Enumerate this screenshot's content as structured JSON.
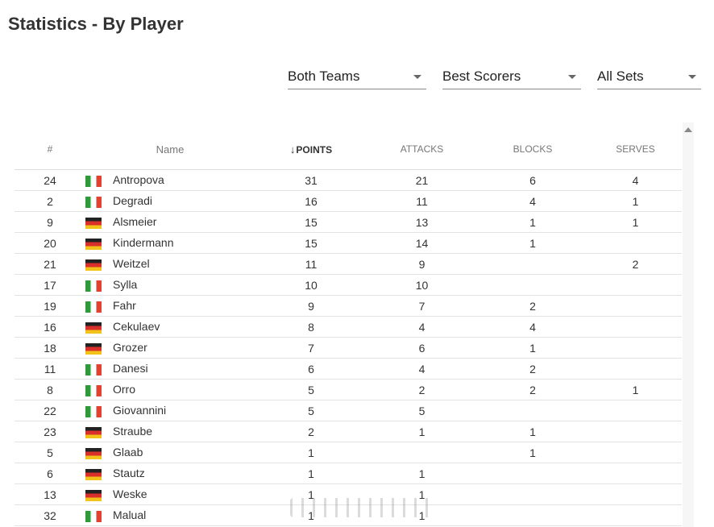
{
  "page": {
    "title": "Statistics - By Player"
  },
  "filters": [
    {
      "name": "team-filter",
      "value": "Both Teams"
    },
    {
      "name": "category-filter",
      "value": "Best Scorers"
    },
    {
      "name": "set-filter",
      "value": "All Sets"
    }
  ],
  "table": {
    "headers": {
      "num": "#",
      "name": "Name",
      "points": "POINTS",
      "attacks": "ATTACKS",
      "blocks": "BLOCKS",
      "serves": "SERVES"
    },
    "sort_indicator": "↓",
    "rows": [
      {
        "num": "24",
        "flag": "it",
        "name": "Antropova",
        "points": "31",
        "attacks": "21",
        "blocks": "6",
        "serves": "4"
      },
      {
        "num": "2",
        "flag": "it",
        "name": "Degradi",
        "points": "16",
        "attacks": "11",
        "blocks": "4",
        "serves": "1"
      },
      {
        "num": "9",
        "flag": "de",
        "name": "Alsmeier",
        "points": "15",
        "attacks": "13",
        "blocks": "1",
        "serves": "1"
      },
      {
        "num": "20",
        "flag": "de",
        "name": "Kindermann",
        "points": "15",
        "attacks": "14",
        "blocks": "1",
        "serves": ""
      },
      {
        "num": "21",
        "flag": "de",
        "name": "Weitzel",
        "points": "11",
        "attacks": "9",
        "blocks": "",
        "serves": "2"
      },
      {
        "num": "17",
        "flag": "it",
        "name": "Sylla",
        "points": "10",
        "attacks": "10",
        "blocks": "",
        "serves": ""
      },
      {
        "num": "19",
        "flag": "it",
        "name": "Fahr",
        "points": "9",
        "attacks": "7",
        "blocks": "2",
        "serves": ""
      },
      {
        "num": "16",
        "flag": "de",
        "name": "Cekulaev",
        "points": "8",
        "attacks": "4",
        "blocks": "4",
        "serves": ""
      },
      {
        "num": "18",
        "flag": "de",
        "name": "Grozer",
        "points": "7",
        "attacks": "6",
        "blocks": "1",
        "serves": ""
      },
      {
        "num": "11",
        "flag": "it",
        "name": "Danesi",
        "points": "6",
        "attacks": "4",
        "blocks": "2",
        "serves": ""
      },
      {
        "num": "8",
        "flag": "it",
        "name": "Orro",
        "points": "5",
        "attacks": "2",
        "blocks": "2",
        "serves": "1"
      },
      {
        "num": "22",
        "flag": "it",
        "name": "Giovannini",
        "points": "5",
        "attacks": "5",
        "blocks": "",
        "serves": ""
      },
      {
        "num": "23",
        "flag": "de",
        "name": "Straube",
        "points": "2",
        "attacks": "1",
        "blocks": "1",
        "serves": ""
      },
      {
        "num": "5",
        "flag": "de",
        "name": "Glaab",
        "points": "1",
        "attacks": "",
        "blocks": "1",
        "serves": ""
      },
      {
        "num": "6",
        "flag": "de",
        "name": "Stautz",
        "points": "1",
        "attacks": "1",
        "blocks": "",
        "serves": ""
      },
      {
        "num": "13",
        "flag": "de",
        "name": "Weske",
        "points": "1",
        "attacks": "1",
        "blocks": "",
        "serves": ""
      },
      {
        "num": "32",
        "flag": "it",
        "name": "Malual",
        "points": "1",
        "attacks": "1",
        "blocks": "",
        "serves": ""
      }
    ]
  }
}
